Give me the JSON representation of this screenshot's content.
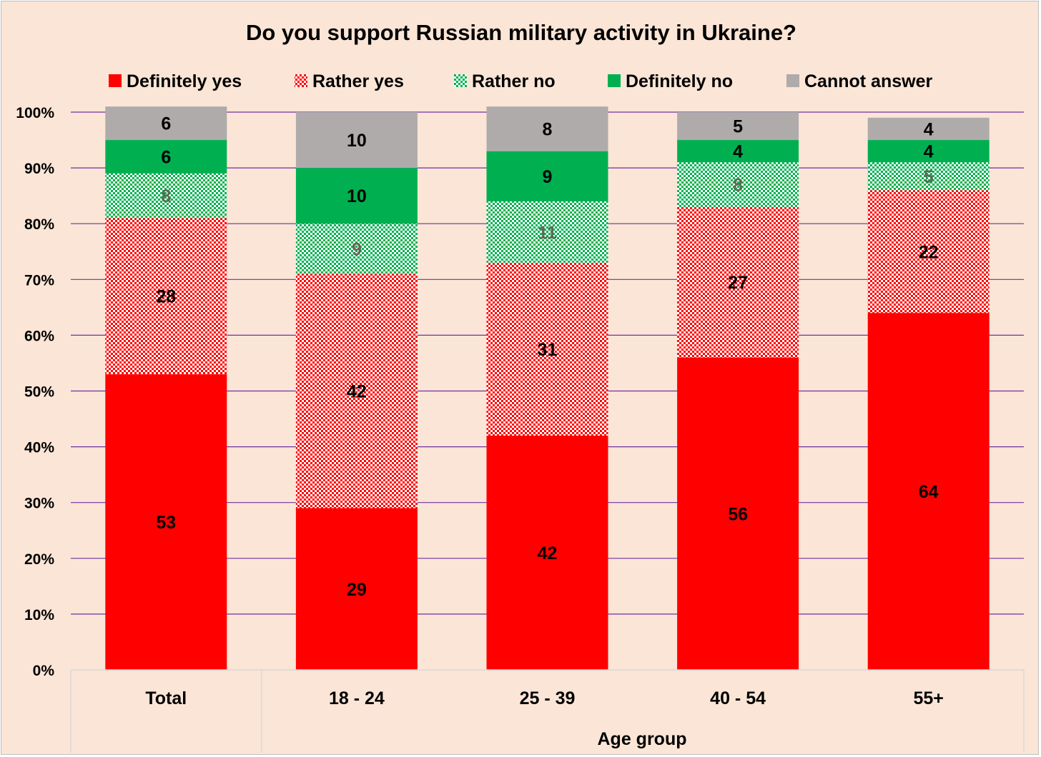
{
  "chart_data": {
    "type": "bar",
    "stacked": true,
    "title": "Do you support Russian military activity in Ukraine?",
    "xlabel": "Age group",
    "ylabel": "",
    "categories": [
      "Total",
      "18 - 24",
      "25 - 39",
      "40 - 54",
      "55+"
    ],
    "ylim": [
      0,
      100
    ],
    "yticks": [
      "0%",
      "10%",
      "20%",
      "30%",
      "40%",
      "50%",
      "60%",
      "70%",
      "80%",
      "90%",
      "100%"
    ],
    "grid": true,
    "legend_position": "top",
    "series": [
      {
        "name": "Definitely yes",
        "values": [
          53,
          29,
          42,
          56,
          64
        ],
        "color": "#ff0000",
        "pattern": "solid"
      },
      {
        "name": "Rather yes",
        "values": [
          28,
          42,
          31,
          27,
          22
        ],
        "color": "#ff0000",
        "pattern": "checker-red"
      },
      {
        "name": "Rather no",
        "values": [
          8,
          9,
          11,
          8,
          5
        ],
        "color": "#00b050",
        "pattern": "checker-green"
      },
      {
        "name": "Definitely no",
        "values": [
          6,
          10,
          9,
          4,
          4
        ],
        "color": "#00b050",
        "pattern": "solid"
      },
      {
        "name": "Cannot answer",
        "values": [
          6,
          10,
          8,
          5,
          4
        ],
        "color": "#afabab",
        "pattern": "solid"
      }
    ],
    "colors": {
      "background": "#fbe5d6",
      "gridline": "#7030a0",
      "axis_border": "#d9d9d9"
    }
  }
}
